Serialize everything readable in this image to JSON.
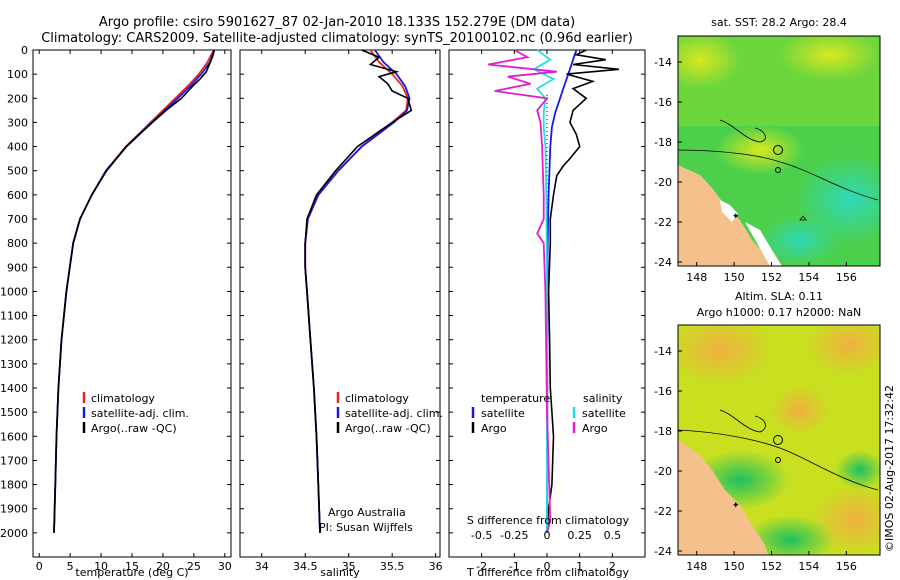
{
  "title_line1": "Argo profile: csiro 5901627_87 02-Jan-2010 18.133S 152.279E (DM data)",
  "title_line2": "Climatology: CARS2009. Satellite-adjusted climatology: synTS_20100102.nc (0.96d earlier)",
  "side_stamp": "©IMOS 02-Aug-2017 17:32:42",
  "colors": {
    "clim": "#e8241c",
    "sat": "#1a1adc",
    "argo": "#000000",
    "sat_s": "#22e0e0",
    "argo_s": "#e020d0",
    "land": "#f4c08c"
  },
  "chart_data": [
    {
      "id": "temperature",
      "type": "line",
      "xlabel": "temperature (deg C)",
      "xlim": [
        -1,
        31
      ],
      "xticks": [
        "0",
        "5",
        "10",
        "15",
        "20",
        "25",
        "30"
      ],
      "xtick_values": [
        0,
        5,
        10,
        15,
        20,
        25,
        30
      ],
      "ylim": [
        2100,
        0
      ],
      "yticks": [
        "0",
        "100",
        "200",
        "300",
        "400",
        "500",
        "600",
        "700",
        "800",
        "900",
        "1000",
        "1100",
        "1200",
        "1300",
        "1400",
        "1500",
        "1600",
        "1700",
        "1800",
        "1900",
        "2000"
      ],
      "ytick_values": [
        0,
        100,
        200,
        300,
        400,
        500,
        600,
        700,
        800,
        900,
        1000,
        1100,
        1200,
        1300,
        1400,
        1500,
        1600,
        1700,
        1800,
        1900,
        2000
      ],
      "legend": [
        "climatology",
        "satellite-adj. clim.",
        "Argo(..raw -QC)"
      ],
      "series": [
        {
          "name": "climatology",
          "color": "#e8241c",
          "depth": [
            0,
            50,
            100,
            150,
            200,
            300,
            400,
            500,
            600,
            700,
            800,
            1000,
            1200,
            1400,
            1600,
            1800,
            2000
          ],
          "values": [
            28.2,
            27.2,
            25.8,
            24.0,
            22.0,
            18.0,
            14.0,
            10.8,
            8.5,
            6.6,
            5.5,
            4.4,
            3.6,
            3.1,
            2.8,
            2.6,
            2.4
          ]
        },
        {
          "name": "satellite-adj. clim.",
          "color": "#1a1adc",
          "depth": [
            0,
            50,
            100,
            150,
            200,
            300,
            400,
            500,
            600,
            700,
            800,
            1000,
            1200,
            1400,
            1600,
            1800,
            2000
          ],
          "values": [
            28.3,
            27.6,
            26.2,
            24.4,
            22.4,
            18.2,
            14.1,
            10.8,
            8.5,
            6.6,
            5.5,
            4.4,
            3.6,
            3.1,
            2.8,
            2.6,
            2.4
          ]
        },
        {
          "name": "Argo(..raw -QC)",
          "color": "#000000",
          "depth": [
            0,
            30,
            60,
            90,
            120,
            150,
            200,
            250,
            300,
            400,
            500,
            600,
            700,
            800,
            1000,
            1200,
            1400,
            1600,
            1800,
            2000
          ],
          "values": [
            28.3,
            28.0,
            27.5,
            27.0,
            26.0,
            24.8,
            23.0,
            20.5,
            18.3,
            14.1,
            10.9,
            8.5,
            6.6,
            5.5,
            4.4,
            3.6,
            3.1,
            2.8,
            2.6,
            2.4
          ]
        }
      ]
    },
    {
      "id": "salinity",
      "type": "line",
      "xlabel": "salinity",
      "xlim": [
        33.75,
        36.05
      ],
      "xticks": [
        "34",
        "34.5",
        "35",
        "35.5",
        "36"
      ],
      "xtick_values": [
        34,
        34.5,
        35,
        35.5,
        36
      ],
      "ylim": [
        2100,
        0
      ],
      "legend": [
        "climatology",
        "satellite-adj. clim.",
        "Argo(..raw -QC)"
      ],
      "annotation": [
        "Argo Australia",
        "PI: Susan Wijffels"
      ],
      "series": [
        {
          "name": "climatology",
          "color": "#e8241c",
          "depth": [
            0,
            50,
            100,
            150,
            200,
            250,
            300,
            400,
            500,
            600,
            700,
            800,
            900,
            1000,
            1200,
            1400,
            1600,
            1800,
            2000
          ],
          "values": [
            35.25,
            35.35,
            35.5,
            35.62,
            35.68,
            35.66,
            35.5,
            35.15,
            34.88,
            34.65,
            34.53,
            34.5,
            34.5,
            34.52,
            34.56,
            34.6,
            34.63,
            34.65,
            34.67
          ]
        },
        {
          "name": "satellite-adj. clim.",
          "color": "#1a1adc",
          "depth": [
            0,
            50,
            100,
            150,
            200,
            250,
            300,
            400,
            500,
            600,
            700,
            800,
            900,
            1000,
            1200,
            1400,
            1600,
            1800,
            2000
          ],
          "values": [
            35.3,
            35.4,
            35.55,
            35.65,
            35.7,
            35.67,
            35.52,
            35.15,
            34.88,
            34.65,
            34.53,
            34.5,
            34.5,
            34.52,
            34.56,
            34.6,
            34.63,
            34.65,
            34.67
          ]
        },
        {
          "name": "Argo(..raw -QC)",
          "color": "#000000",
          "depth": [
            0,
            30,
            60,
            90,
            110,
            140,
            170,
            200,
            250,
            300,
            400,
            500,
            600,
            700,
            800,
            900,
            1000,
            1200,
            1400,
            1600,
            1800,
            2000
          ],
          "values": [
            35.15,
            35.35,
            35.25,
            35.55,
            35.35,
            35.45,
            35.5,
            35.68,
            35.72,
            35.5,
            35.1,
            34.85,
            34.63,
            34.52,
            34.5,
            34.5,
            34.52,
            34.56,
            34.6,
            34.63,
            34.65,
            34.67
          ]
        }
      ]
    },
    {
      "id": "differences",
      "type": "line",
      "xlabel": "T difference from climatology",
      "xlabel_top": "S difference from climatology",
      "xlim": [
        -3,
        3
      ],
      "xticks": [
        "-2",
        "-1",
        "0",
        "1",
        "2"
      ],
      "xtick_values": [
        -2,
        -1,
        0,
        1,
        2
      ],
      "xticks_s": [
        "-0.5",
        "-0.25",
        "0",
        "0.25",
        "0.5"
      ],
      "xtick_s_values": [
        -2,
        -1,
        0,
        1,
        2
      ],
      "ylim": [
        2100,
        0
      ],
      "legend_t_title": "temperature",
      "legend_s_title": "salinity",
      "legend_t": [
        "satellite",
        "Argo"
      ],
      "legend_s": [
        "satellite",
        "Argo"
      ],
      "series": [
        {
          "name": "T satellite",
          "color": "#1a1adc",
          "depth": [
            0,
            40,
            80,
            120,
            160,
            200,
            260,
            320,
            400,
            600,
            800,
            1000,
            1500,
            2000
          ],
          "values": [
            0.9,
            0.8,
            0.7,
            0.6,
            0.5,
            0.4,
            0.25,
            0.15,
            0.1,
            0.05,
            0.02,
            0.01,
            0.01,
            0.0
          ]
        },
        {
          "name": "T Argo",
          "color": "#000000",
          "depth": [
            0,
            20,
            40,
            60,
            80,
            100,
            130,
            160,
            200,
            250,
            300,
            350,
            400,
            450,
            480,
            520,
            600,
            700,
            800,
            1000,
            1200,
            1400,
            1600,
            1800,
            1900,
            2000
          ],
          "values": [
            1.2,
            0.9,
            1.8,
            0.8,
            2.2,
            0.6,
            1.4,
            0.8,
            1.2,
            0.8,
            0.7,
            0.9,
            1.0,
            0.7,
            0.5,
            0.3,
            0.2,
            0.1,
            0.1,
            0.05,
            0.08,
            0.1,
            0.2,
            0.15,
            0.05,
            0.0
          ]
        },
        {
          "name": "S satellite",
          "color": "#22e0e0",
          "depth": [
            0,
            40,
            80,
            120,
            160,
            200,
            260,
            320,
            400,
            600,
            800,
            1000,
            1500,
            2000
          ],
          "values": [
            -0.3,
            0.1,
            -0.4,
            0.2,
            -0.3,
            -0.05,
            -0.1,
            -0.1,
            -0.05,
            -0.02,
            -0.01,
            0.0,
            0.0,
            0.0
          ]
        },
        {
          "name": "S Argo",
          "color": "#e020d0",
          "depth": [
            0,
            30,
            60,
            90,
            110,
            140,
            170,
            200,
            250,
            300,
            400,
            600,
            700,
            760,
            800,
            1000,
            1500,
            1950,
            2000
          ],
          "values": [
            -1.0,
            -0.6,
            -1.8,
            0.3,
            -1.2,
            -0.5,
            -1.6,
            0.0,
            -0.3,
            -0.2,
            -0.15,
            -0.1,
            -0.1,
            -0.3,
            -0.1,
            -0.05,
            0.0,
            0.1,
            0.0
          ]
        }
      ]
    },
    {
      "id": "sst_map",
      "type": "heatmap",
      "title": "sat. SST: 28.2 Argo: 28.4",
      "xticks": [
        "148",
        "150",
        "152",
        "154",
        "156"
      ],
      "xtick_values": [
        148,
        150,
        152,
        154,
        156
      ],
      "yticks": [
        "-14",
        "-16",
        "-18",
        "-20",
        "-22",
        "-24"
      ],
      "ytick_values": [
        -14,
        -16,
        -18,
        -20,
        -22,
        -24
      ],
      "xlim": [
        147.0,
        157.8
      ],
      "ylim": [
        -24.2,
        -12.7
      ],
      "profile_location": [
        152.279,
        -18.133
      ]
    },
    {
      "id": "sla_map",
      "type": "heatmap",
      "title_line1": "Altim. SLA: 0.11",
      "title_line2": "Argo h1000: 0.17 h2000: NaN",
      "xticks": [
        "148",
        "150",
        "152",
        "154",
        "156"
      ],
      "xtick_values": [
        148,
        150,
        152,
        154,
        156
      ],
      "yticks": [
        "-14",
        "-16",
        "-18",
        "-20",
        "-22",
        "-24"
      ],
      "ytick_values": [
        -14,
        -16,
        -18,
        -20,
        -22,
        -24
      ],
      "xlim": [
        147.0,
        157.8
      ],
      "ylim": [
        -24.2,
        -12.7
      ],
      "profile_location": [
        152.279,
        -18.133
      ]
    }
  ]
}
